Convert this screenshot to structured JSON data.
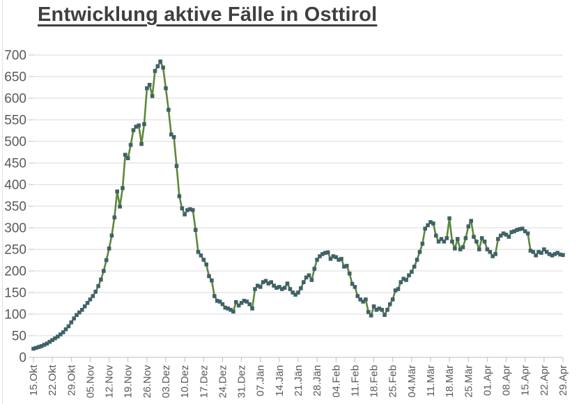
{
  "title": "Entwicklung aktive Fälle in Osttirol",
  "chart_data": {
    "type": "line",
    "title": "Entwicklung aktive Fälle in Osttirol",
    "legend": "none",
    "grid": "horizontal",
    "marker": "square",
    "ylim": [
      0,
      700
    ],
    "y_ticks": [
      0,
      50,
      100,
      150,
      200,
      250,
      300,
      350,
      400,
      450,
      500,
      550,
      600,
      650,
      700
    ],
    "x_tick_labels": [
      "15.Okt",
      "22.Okt",
      "29.Okt",
      "05.Nov",
      "12.Nov",
      "19.Nov",
      "26.Nov",
      "03.Dez",
      "10.Dez",
      "17.Dez",
      "24.Dez",
      "31.Dez",
      "07.Jän",
      "14.Jän",
      "21.Jän",
      "28.Jän",
      "04.Feb",
      "11.Feb",
      "18.Feb",
      "25.Feb",
      "04.Mär",
      "11.Mär",
      "18.Mär",
      "25.Mär",
      "01.Apr",
      "08.Apr",
      "15.Apr",
      "22.Apr",
      "29.Apr"
    ],
    "points_per_tick": 7,
    "x_start": "15.Okt",
    "x_end": "29.Apr",
    "values": [
      20,
      22,
      24,
      26,
      29,
      32,
      36,
      40,
      44,
      48,
      53,
      58,
      65,
      72,
      81,
      90,
      98,
      104,
      110,
      118,
      126,
      134,
      142,
      152,
      165,
      180,
      200,
      225,
      252,
      282,
      324,
      384,
      349,
      392,
      469,
      461,
      492,
      526,
      534,
      537,
      494,
      540,
      623,
      631,
      605,
      663,
      674,
      685,
      671,
      623,
      573,
      516,
      510,
      443,
      373,
      345,
      331,
      341,
      343,
      341,
      295,
      244,
      236,
      226,
      215,
      188,
      178,
      142,
      131,
      129,
      123,
      115,
      113,
      110,
      106,
      128,
      120,
      126,
      131,
      129,
      123,
      113,
      158,
      166,
      163,
      174,
      177,
      171,
      174,
      166,
      161,
      163,
      158,
      161,
      171,
      158,
      150,
      145,
      150,
      160,
      174,
      185,
      190,
      179,
      205,
      226,
      234,
      239,
      242,
      243,
      228,
      234,
      232,
      226,
      228,
      210,
      212,
      194,
      170,
      163,
      142,
      134,
      129,
      134,
      105,
      97,
      118,
      110,
      113,
      110,
      98,
      110,
      123,
      134,
      155,
      158,
      174,
      182,
      179,
      190,
      198,
      210,
      226,
      244,
      263,
      298,
      306,
      313,
      310,
      282,
      268,
      274,
      268,
      276,
      322,
      268,
      252,
      274,
      250,
      255,
      276,
      303,
      316,
      279,
      268,
      250,
      276,
      268,
      250,
      244,
      234,
      239,
      274,
      282,
      287,
      284,
      279,
      290,
      292,
      295,
      297,
      298,
      292,
      287,
      247,
      244,
      236,
      244,
      242,
      250,
      244,
      239,
      236,
      239,
      242,
      238,
      237
    ],
    "colors": {
      "line": "#5E8738",
      "marker": "#3F6267",
      "gridline": "#D9D9D9",
      "axis": "#BFBFBF",
      "axis_text": "#595959",
      "title_text": "#3F3F3F"
    }
  }
}
